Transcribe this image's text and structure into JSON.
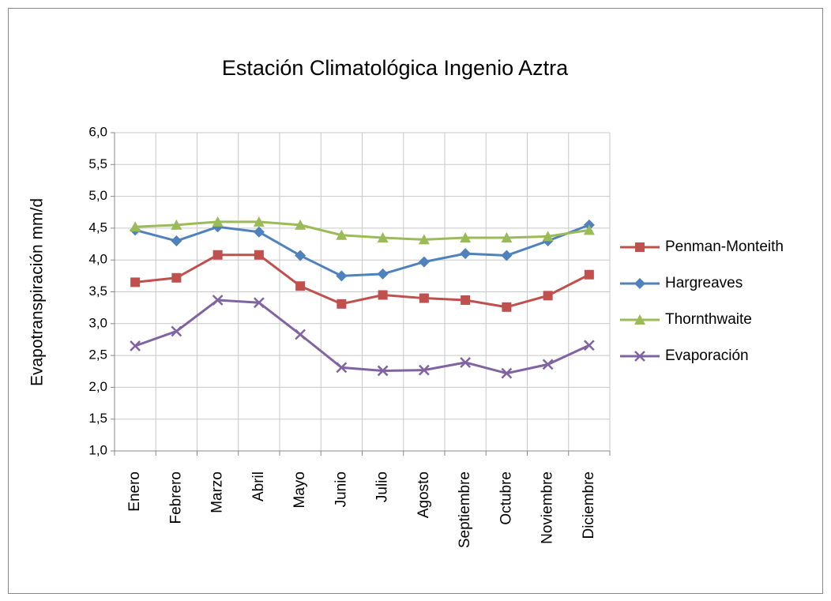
{
  "chart_data": {
    "type": "line",
    "title": "Estación Climatológica Ingenio Aztra",
    "y_label": "Evapotranspiración  mm/d",
    "categories": [
      "Enero",
      "Febrero",
      "Marzo",
      "Abril",
      "Mayo",
      "Junio",
      "Julio",
      "Agosto",
      "Septiembre",
      "Octubre",
      "Noviembre",
      "Diciembre"
    ],
    "series": [
      {
        "name": "Penman-Monteith",
        "color": "#c0504d",
        "marker": "square",
        "values": [
          3.65,
          3.72,
          4.08,
          4.08,
          3.59,
          3.31,
          3.45,
          3.4,
          3.37,
          3.26,
          3.44,
          3.77
        ]
      },
      {
        "name": "Hargreaves",
        "color": "#4f81bd",
        "marker": "diamond",
        "values": [
          4.47,
          4.3,
          4.52,
          4.44,
          4.07,
          3.75,
          3.78,
          3.97,
          4.1,
          4.07,
          4.3,
          4.55
        ]
      },
      {
        "name": "Thornthwaite",
        "color": "#9bbb59",
        "marker": "triangle",
        "values": [
          4.52,
          4.55,
          4.6,
          4.6,
          4.55,
          4.39,
          4.35,
          4.32,
          4.35,
          4.35,
          4.37,
          4.47
        ]
      },
      {
        "name": "Evaporación",
        "color": "#8064a2",
        "marker": "x",
        "values": [
          2.65,
          2.88,
          3.37,
          3.33,
          2.83,
          2.31,
          2.26,
          2.27,
          2.39,
          2.22,
          2.36,
          2.66
        ]
      }
    ],
    "ylim": [
      1.0,
      6.0
    ],
    "yticks": [
      {
        "value": 1.0,
        "label": "1,0"
      },
      {
        "value": 1.5,
        "label": "1,5"
      },
      {
        "value": 2.0,
        "label": "2,0"
      },
      {
        "value": 2.5,
        "label": "2,5"
      },
      {
        "value": 3.0,
        "label": "3,0"
      },
      {
        "value": 3.5,
        "label": "3,5"
      },
      {
        "value": 4.0,
        "label": "4,0"
      },
      {
        "value": 4.5,
        "label": "4,5"
      },
      {
        "value": 5.0,
        "label": "5,0"
      },
      {
        "value": 5.5,
        "label": "5,5"
      },
      {
        "value": 6.0,
        "label": "6,0"
      }
    ],
    "grid": true,
    "legend": "right"
  }
}
